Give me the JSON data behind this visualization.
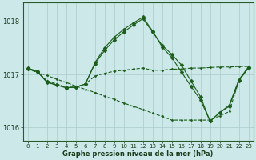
{
  "background_color": "#cce8e8",
  "grid_color": "#aacccc",
  "line_color": "#1a5c1a",
  "title": "Graphe pression niveau de la mer (hPa)",
  "xlim": [
    -0.5,
    23.5
  ],
  "ylim": [
    1015.75,
    1018.35
  ],
  "yticks": [
    1016,
    1017,
    1018
  ],
  "xticks": [
    0,
    1,
    2,
    3,
    4,
    5,
    6,
    7,
    8,
    9,
    10,
    11,
    12,
    13,
    14,
    15,
    16,
    17,
    18,
    19,
    20,
    21,
    22,
    23
  ],
  "series": [
    {
      "x": [
        0,
        1,
        2,
        3,
        4,
        5,
        6,
        7,
        8,
        9,
        10,
        11,
        12,
        13,
        14,
        15,
        16,
        17,
        18,
        19,
        20,
        21,
        22,
        23
      ],
      "y": [
        1017.1,
        1017.05,
        1016.88,
        1016.82,
        1016.76,
        1016.76,
        1016.82,
        1016.97,
        1017.02,
        1017.06,
        1017.08,
        1017.1,
        1017.12,
        1017.08,
        1017.08,
        1017.1,
        1017.1,
        1017.12,
        1017.12,
        1017.13,
        1017.14,
        1017.14,
        1017.15,
        1017.15
      ],
      "linestyle": "--",
      "markersize": 1.5
    },
    {
      "x": [
        0,
        1,
        2,
        3,
        4,
        5,
        6,
        7,
        8,
        9,
        10,
        11,
        12,
        13,
        14,
        15,
        16,
        17,
        18,
        19,
        20,
        21,
        22,
        23
      ],
      "y": [
        1017.1,
        1017.05,
        1016.85,
        1016.8,
        1016.75,
        1016.76,
        1016.82,
        1017.2,
        1017.45,
        1017.65,
        1017.8,
        1017.93,
        1018.05,
        1017.8,
        1017.55,
        1017.38,
        1017.18,
        1016.88,
        1016.58,
        1016.12,
        1016.28,
        1016.4,
        1016.88,
        1017.12
      ],
      "linestyle": "-",
      "markersize": 2.5
    },
    {
      "x": [
        0,
        1,
        2,
        3,
        4,
        5,
        6,
        7,
        8,
        9,
        10,
        11,
        12,
        13,
        14,
        15,
        16,
        17,
        18,
        19,
        20,
        21,
        22,
        23
      ],
      "y": [
        1017.12,
        1017.06,
        1016.86,
        1016.8,
        1016.75,
        1016.76,
        1016.82,
        1017.22,
        1017.5,
        1017.7,
        1017.85,
        1017.97,
        1018.08,
        1017.82,
        1017.52,
        1017.32,
        1017.05,
        1016.78,
        1016.52,
        1016.12,
        1016.28,
        1016.42,
        1016.9,
        1017.14
      ],
      "linestyle": "-",
      "markersize": 2.5
    },
    {
      "x": [
        0,
        1,
        2,
        3,
        4,
        5,
        6,
        7,
        8,
        9,
        10,
        11,
        12,
        13,
        14,
        15,
        16,
        17,
        18,
        19,
        20,
        21,
        22,
        23
      ],
      "y": [
        1017.1,
        1017.04,
        1016.98,
        1016.91,
        1016.85,
        1016.78,
        1016.72,
        1016.66,
        1016.59,
        1016.53,
        1016.46,
        1016.4,
        1016.34,
        1016.27,
        1016.21,
        1016.14,
        1016.14,
        1016.14,
        1016.14,
        1016.14,
        1016.22,
        1016.3,
        1016.88,
        1017.14
      ],
      "linestyle": "--",
      "markersize": 1.5
    }
  ]
}
